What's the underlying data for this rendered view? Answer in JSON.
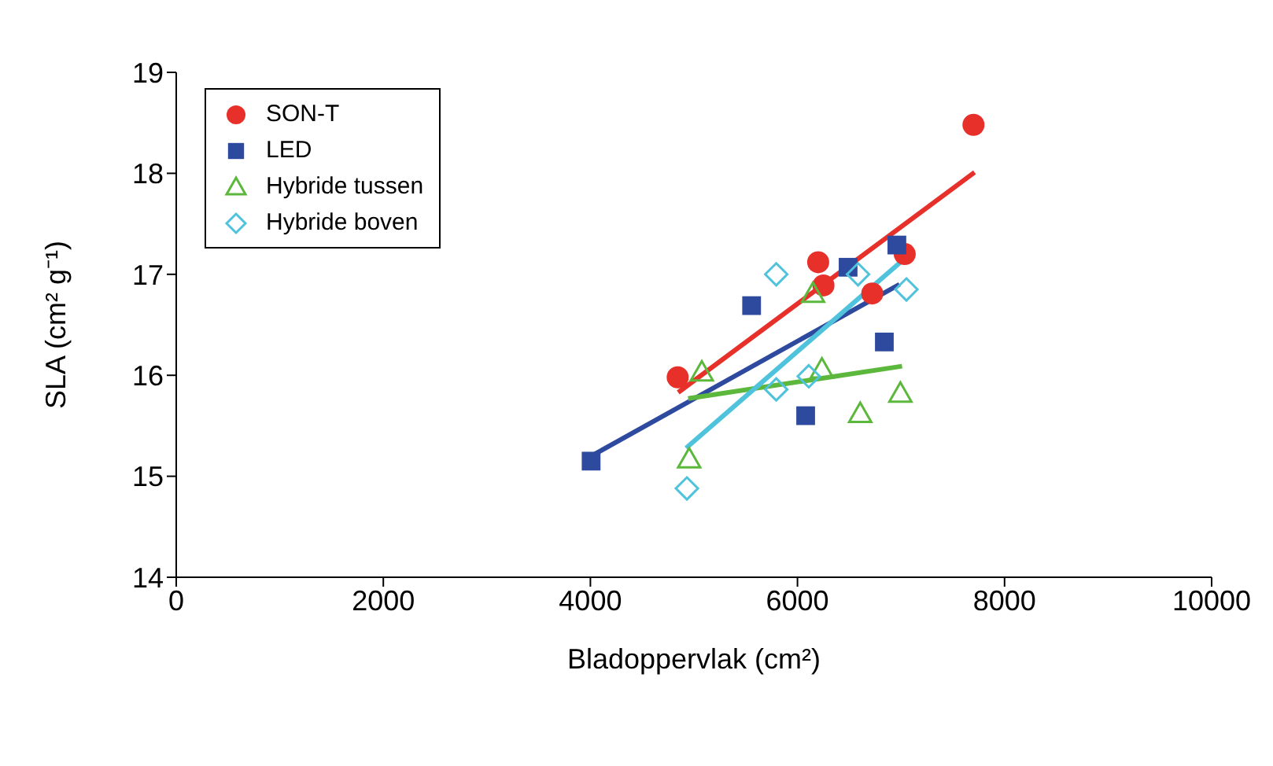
{
  "chart_data": {
    "type": "scatter",
    "xlabel": "Bladoppervlak (cm²)",
    "ylabel": "SLA (cm² g⁻¹)",
    "xlim": [
      0,
      10000
    ],
    "xticks": [
      0,
      2000,
      4000,
      6000,
      8000,
      10000
    ],
    "ylim": [
      14,
      19
    ],
    "yticks": [
      14,
      15,
      16,
      17,
      18,
      19
    ],
    "grid": false,
    "legend": "top left",
    "series": [
      {
        "name": "SON-T",
        "marker": "circle",
        "color": "#e8302a",
        "x": [
          4843,
          6200,
          6251,
          6722,
          7036,
          7700
        ],
        "values": [
          15.98,
          17.12,
          16.89,
          16.81,
          17.2,
          18.48
        ]
      },
      {
        "name": "LED",
        "marker": "square",
        "color": "#2e4a9e",
        "x": [
          4007,
          5557,
          6489,
          6960,
          6839,
          6079
        ],
        "values": [
          15.15,
          16.69,
          17.07,
          17.29,
          16.33,
          15.6
        ]
      },
      {
        "name": "Hybride tussen",
        "marker": "triangle",
        "color": "#5cb83c",
        "x": [
          4954,
          5076,
          6150,
          6236,
          6606,
          6994
        ],
        "values": [
          15.17,
          16.03,
          16.81,
          16.06,
          15.62,
          15.82
        ]
      },
      {
        "name": "Hybride boven",
        "marker": "diamond",
        "color": "#4fc3dc",
        "x": [
          4932,
          5795,
          5795,
          6109,
          6585,
          7052
        ],
        "values": [
          14.88,
          15.86,
          17.0,
          15.99,
          17.0,
          16.85
        ]
      },
      {
        "type": "line",
        "color": "#e8302a",
        "x": [
          4848,
          7710
        ],
        "values": [
          15.83,
          18.01
        ]
      },
      {
        "type": "line",
        "color": "#2e4a9e",
        "x": [
          4007,
          6985
        ],
        "values": [
          15.2,
          16.9
        ]
      },
      {
        "type": "line",
        "color": "#5cb83c",
        "x": [
          4944,
          7010
        ],
        "values": [
          15.77,
          16.09
        ]
      },
      {
        "type": "line",
        "color": "#4fc3dc",
        "x": [
          4924,
          7062
        ],
        "values": [
          15.28,
          17.18
        ]
      }
    ]
  }
}
